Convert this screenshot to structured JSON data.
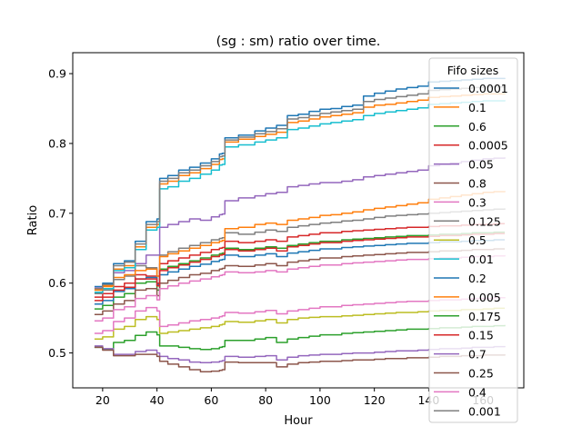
{
  "chart_data": {
    "type": "line",
    "title": "(sg : sm) ratio over time.",
    "xlabel": "Hour",
    "ylabel": "Ratio",
    "xlim": [
      9,
      175
    ],
    "ylim": [
      0.45,
      0.93
    ],
    "xticks": [
      20,
      40,
      60,
      80,
      100,
      120,
      140,
      160
    ],
    "yticks": [
      0.5,
      0.6,
      0.7,
      0.8,
      0.9
    ],
    "grid": false,
    "legend": {
      "title": "Fifo sizes",
      "placement": "top-right"
    },
    "x": [
      17,
      20,
      24,
      28,
      32,
      36,
      40,
      41,
      44,
      48,
      52,
      56,
      60,
      63,
      64,
      65,
      70,
      76,
      80,
      84,
      88,
      92,
      96,
      100,
      104,
      108,
      112,
      116,
      120,
      124,
      128,
      132,
      136,
      140,
      144,
      148,
      152,
      156,
      160,
      164,
      168
    ],
    "series": [
      {
        "name": "0.0001",
        "color": "#1f77b4",
        "values": [
          0.595,
          0.6,
          0.628,
          0.632,
          0.66,
          0.688,
          0.692,
          0.75,
          0.754,
          0.762,
          0.766,
          0.772,
          0.778,
          0.785,
          0.786,
          0.808,
          0.812,
          0.818,
          0.822,
          0.826,
          0.84,
          0.842,
          0.846,
          0.849,
          0.85,
          0.853,
          0.855,
          0.868,
          0.872,
          0.875,
          0.878,
          0.88,
          0.882,
          0.888,
          0.889,
          0.89,
          0.891,
          0.892,
          0.893,
          0.893,
          0.894
        ]
      },
      {
        "name": "0.1",
        "color": "#ff7f0e",
        "values": [
          0.59,
          0.595,
          0.62,
          0.625,
          0.652,
          0.68,
          0.684,
          0.742,
          0.746,
          0.754,
          0.758,
          0.764,
          0.77,
          0.777,
          0.778,
          0.802,
          0.806,
          0.81,
          0.813,
          0.816,
          0.83,
          0.832,
          0.835,
          0.838,
          0.84,
          0.842,
          0.844,
          0.852,
          0.855,
          0.856,
          0.858,
          0.86,
          0.862,
          0.866,
          0.867,
          0.868,
          0.869,
          0.87,
          0.871,
          0.871,
          0.872
        ]
      },
      {
        "name": "0.6",
        "color": "#2ca02c",
        "values": [
          0.563,
          0.568,
          0.58,
          0.585,
          0.6,
          0.602,
          0.59,
          0.62,
          0.624,
          0.628,
          0.632,
          0.636,
          0.64,
          0.642,
          0.643,
          0.65,
          0.648,
          0.65,
          0.652,
          0.65,
          0.654,
          0.656,
          0.658,
          0.66,
          0.66,
          0.662,
          0.663,
          0.664,
          0.665,
          0.666,
          0.667,
          0.668,
          0.668,
          0.669,
          0.67,
          0.67,
          0.671,
          0.672,
          0.672,
          0.673,
          0.673
        ]
      },
      {
        "name": "0.0005",
        "color": "#d62728",
        "values": [
          0.58,
          0.585,
          0.595,
          0.6,
          0.612,
          0.61,
          0.6,
          0.628,
          0.632,
          0.636,
          0.64,
          0.644,
          0.648,
          0.65,
          0.651,
          0.66,
          0.658,
          0.66,
          0.662,
          0.66,
          0.666,
          0.668,
          0.67,
          0.672,
          0.672,
          0.674,
          0.675,
          0.676,
          0.677,
          0.678,
          0.679,
          0.68,
          0.68,
          0.681,
          0.682,
          0.682,
          0.683,
          0.684,
          0.684,
          0.685,
          0.685
        ]
      },
      {
        "name": "0.05",
        "color": "#9467bd",
        "values": [
          0.593,
          0.597,
          0.615,
          0.618,
          0.628,
          0.64,
          0.64,
          0.68,
          0.684,
          0.688,
          0.692,
          0.69,
          0.695,
          0.698,
          0.699,
          0.718,
          0.722,
          0.725,
          0.728,
          0.73,
          0.738,
          0.74,
          0.742,
          0.744,
          0.744,
          0.746,
          0.748,
          0.752,
          0.754,
          0.756,
          0.758,
          0.76,
          0.762,
          0.768,
          0.77,
          0.772,
          0.774,
          0.776,
          0.778,
          0.779,
          0.78
        ]
      },
      {
        "name": "0.8",
        "color": "#8c564b",
        "values": [
          0.555,
          0.56,
          0.57,
          0.575,
          0.59,
          0.592,
          0.582,
          0.6,
          0.604,
          0.608,
          0.612,
          0.614,
          0.618,
          0.62,
          0.621,
          0.625,
          0.624,
          0.626,
          0.628,
          0.625,
          0.63,
          0.632,
          0.634,
          0.636,
          0.636,
          0.638,
          0.639,
          0.64,
          0.641,
          0.642,
          0.643,
          0.644,
          0.644,
          0.645,
          0.646,
          0.646,
          0.647,
          0.648,
          0.648,
          0.649,
          0.649
        ]
      },
      {
        "name": "0.3",
        "color": "#e377c2",
        "values": [
          0.546,
          0.55,
          0.562,
          0.566,
          0.578,
          0.582,
          0.576,
          0.592,
          0.596,
          0.6,
          0.603,
          0.606,
          0.609,
          0.611,
          0.612,
          0.616,
          0.615,
          0.616,
          0.618,
          0.616,
          0.62,
          0.622,
          0.624,
          0.626,
          0.626,
          0.628,
          0.629,
          0.63,
          0.631,
          0.632,
          0.633,
          0.634,
          0.634,
          0.635,
          0.636,
          0.636,
          0.637,
          0.638,
          0.638,
          0.639,
          0.64
        ]
      },
      {
        "name": "0.125",
        "color": "#7f7f7f",
        "values": [
          0.585,
          0.59,
          0.605,
          0.61,
          0.625,
          0.622,
          0.61,
          0.64,
          0.645,
          0.65,
          0.654,
          0.658,
          0.662,
          0.664,
          0.665,
          0.672,
          0.67,
          0.673,
          0.676,
          0.674,
          0.68,
          0.682,
          0.684,
          0.686,
          0.687,
          0.689,
          0.69,
          0.692,
          0.694,
          0.696,
          0.697,
          0.698,
          0.699,
          0.7,
          0.701,
          0.702,
          0.703,
          0.704,
          0.705,
          0.706,
          0.707
        ]
      },
      {
        "name": "0.5",
        "color": "#bcbd22",
        "values": [
          0.52,
          0.523,
          0.534,
          0.538,
          0.548,
          0.552,
          0.548,
          0.528,
          0.53,
          0.532,
          0.534,
          0.536,
          0.538,
          0.54,
          0.541,
          0.545,
          0.544,
          0.546,
          0.548,
          0.543,
          0.548,
          0.55,
          0.551,
          0.552,
          0.552,
          0.553,
          0.554,
          0.555,
          0.556,
          0.557,
          0.558,
          0.558,
          0.559,
          0.56,
          0.561,
          0.561,
          0.562,
          0.562,
          0.563,
          0.564,
          0.564
        ]
      },
      {
        "name": "0.01",
        "color": "#17becf",
        "values": [
          0.587,
          0.592,
          0.618,
          0.622,
          0.648,
          0.676,
          0.68,
          0.735,
          0.738,
          0.746,
          0.75,
          0.756,
          0.762,
          0.769,
          0.77,
          0.795,
          0.798,
          0.802,
          0.805,
          0.808,
          0.82,
          0.822,
          0.825,
          0.828,
          0.83,
          0.832,
          0.834,
          0.84,
          0.843,
          0.845,
          0.847,
          0.849,
          0.851,
          0.856,
          0.857,
          0.858,
          0.859,
          0.86,
          0.861,
          0.861,
          0.862
        ]
      },
      {
        "name": "0.2",
        "color": "#1f77b4",
        "values": [
          0.57,
          0.575,
          0.588,
          0.592,
          0.606,
          0.608,
          0.598,
          0.612,
          0.616,
          0.62,
          0.624,
          0.627,
          0.631,
          0.633,
          0.634,
          0.64,
          0.638,
          0.64,
          0.642,
          0.638,
          0.643,
          0.645,
          0.647,
          0.649,
          0.649,
          0.651,
          0.652,
          0.653,
          0.654,
          0.655,
          0.656,
          0.657,
          0.657,
          0.658,
          0.659,
          0.659,
          0.66,
          0.661,
          0.661,
          0.662,
          0.662
        ]
      },
      {
        "name": "0.005",
        "color": "#ff7f0e",
        "values": [
          0.59,
          0.596,
          0.608,
          0.612,
          0.618,
          0.62,
          0.61,
          0.638,
          0.642,
          0.646,
          0.65,
          0.654,
          0.658,
          0.66,
          0.661,
          0.678,
          0.68,
          0.684,
          0.686,
          0.684,
          0.69,
          0.692,
          0.694,
          0.697,
          0.698,
          0.7,
          0.702,
          0.705,
          0.707,
          0.709,
          0.711,
          0.713,
          0.715,
          0.72,
          0.722,
          0.724,
          0.726,
          0.728,
          0.73,
          0.731,
          0.732
        ]
      },
      {
        "name": "0.175",
        "color": "#2ca02c",
        "values": [
          0.508,
          0.505,
          0.515,
          0.518,
          0.525,
          0.53,
          0.526,
          0.51,
          0.51,
          0.508,
          0.506,
          0.505,
          0.506,
          0.508,
          0.509,
          0.518,
          0.518,
          0.52,
          0.522,
          0.515,
          0.52,
          0.522,
          0.524,
          0.526,
          0.526,
          0.528,
          0.529,
          0.53,
          0.531,
          0.532,
          0.533,
          0.534,
          0.534,
          0.535,
          0.536,
          0.536,
          0.537,
          0.538,
          0.538,
          0.539,
          0.54
        ]
      },
      {
        "name": "0.15",
        "color": "#d62728",
        "values": [
          0.575,
          0.58,
          0.59,
          0.594,
          0.606,
          0.606,
          0.596,
          0.618,
          0.622,
          0.626,
          0.63,
          0.634,
          0.638,
          0.64,
          0.641,
          0.648,
          0.646,
          0.648,
          0.65,
          0.646,
          0.652,
          0.654,
          0.656,
          0.658,
          0.658,
          0.66,
          0.661,
          0.662,
          0.663,
          0.664,
          0.665,
          0.666,
          0.666,
          0.667,
          0.668,
          0.668,
          0.669,
          0.67,
          0.67,
          0.671,
          0.671
        ]
      },
      {
        "name": "0.7",
        "color": "#9467bd",
        "values": [
          0.51,
          0.506,
          0.498,
          0.498,
          0.502,
          0.504,
          0.5,
          0.495,
          0.492,
          0.49,
          0.487,
          0.486,
          0.487,
          0.488,
          0.489,
          0.495,
          0.494,
          0.495,
          0.496,
          0.49,
          0.494,
          0.496,
          0.497,
          0.498,
          0.498,
          0.499,
          0.5,
          0.5,
          0.501,
          0.502,
          0.503,
          0.503,
          0.504,
          0.505,
          0.506,
          0.506,
          0.507,
          0.508,
          0.508,
          0.509,
          0.51
        ]
      },
      {
        "name": "0.25",
        "color": "#8c564b",
        "values": [
          0.508,
          0.504,
          0.496,
          0.496,
          0.498,
          0.498,
          0.495,
          0.488,
          0.484,
          0.48,
          0.476,
          0.473,
          0.474,
          0.475,
          0.476,
          0.487,
          0.486,
          0.486,
          0.486,
          0.48,
          0.484,
          0.486,
          0.487,
          0.488,
          0.488,
          0.489,
          0.49,
          0.49,
          0.491,
          0.492,
          0.492,
          0.493,
          0.493,
          0.494,
          0.495,
          0.495,
          0.496,
          0.496,
          0.497,
          0.497,
          0.498
        ]
      },
      {
        "name": "0.4",
        "color": "#e377c2",
        "values": [
          0.528,
          0.532,
          0.545,
          0.55,
          0.56,
          0.565,
          0.56,
          0.538,
          0.54,
          0.543,
          0.546,
          0.548,
          0.55,
          0.552,
          0.553,
          0.558,
          0.557,
          0.559,
          0.561,
          0.556,
          0.56,
          0.562,
          0.564,
          0.566,
          0.566,
          0.568,
          0.569,
          0.57,
          0.571,
          0.572,
          0.573,
          0.574,
          0.574,
          0.575,
          0.576,
          0.576,
          0.577,
          0.578,
          0.578,
          0.579,
          0.58
        ]
      },
      {
        "name": "0.001",
        "color": "#7f7f7f",
        "values": [
          0.592,
          0.598,
          0.625,
          0.63,
          0.656,
          0.684,
          0.688,
          0.746,
          0.75,
          0.758,
          0.762,
          0.768,
          0.774,
          0.781,
          0.782,
          0.805,
          0.809,
          0.814,
          0.817,
          0.821,
          0.835,
          0.837,
          0.84,
          0.843,
          0.845,
          0.847,
          0.849,
          0.86,
          0.863,
          0.865,
          0.867,
          0.869,
          0.871,
          0.876,
          0.877,
          0.878,
          0.879,
          0.88,
          0.881,
          0.881,
          0.882
        ]
      }
    ]
  }
}
